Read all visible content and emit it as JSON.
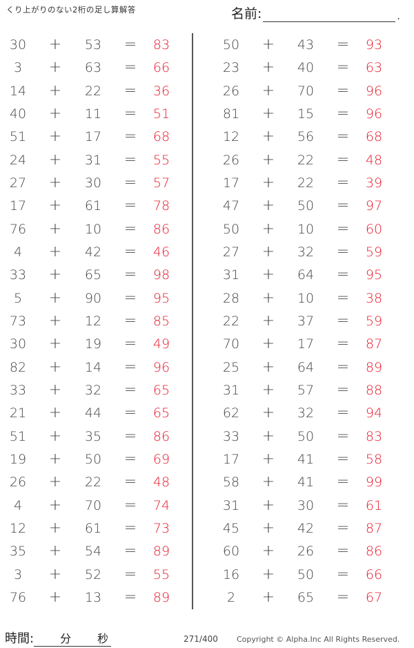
{
  "header": {
    "title": "くり上がりのない2桁の足し算解答",
    "name_label": "名前:",
    "name_end": "."
  },
  "footer": {
    "time_label": "時間:",
    "minutes": "分",
    "seconds": "秒",
    "page": "271/400",
    "copyright": "Copyright ©  Alpha.Inc All Rights Reserved."
  },
  "symbols": {
    "plus": "+",
    "equals": "="
  },
  "colors": {
    "answer": "#e8192c",
    "text": "#444444"
  },
  "left": [
    [
      "30",
      "53",
      "83"
    ],
    [
      "3",
      "63",
      "66"
    ],
    [
      "14",
      "22",
      "36"
    ],
    [
      "40",
      "11",
      "51"
    ],
    [
      "51",
      "17",
      "68"
    ],
    [
      "24",
      "31",
      "55"
    ],
    [
      "27",
      "30",
      "57"
    ],
    [
      "17",
      "61",
      "78"
    ],
    [
      "76",
      "10",
      "86"
    ],
    [
      "4",
      "42",
      "46"
    ],
    [
      "33",
      "65",
      "98"
    ],
    [
      "5",
      "90",
      "95"
    ],
    [
      "73",
      "12",
      "85"
    ],
    [
      "30",
      "19",
      "49"
    ],
    [
      "82",
      "14",
      "96"
    ],
    [
      "33",
      "32",
      "65"
    ],
    [
      "21",
      "44",
      "65"
    ],
    [
      "51",
      "35",
      "86"
    ],
    [
      "19",
      "50",
      "69"
    ],
    [
      "26",
      "22",
      "48"
    ],
    [
      "4",
      "70",
      "74"
    ],
    [
      "12",
      "61",
      "73"
    ],
    [
      "35",
      "54",
      "89"
    ],
    [
      "3",
      "52",
      "55"
    ],
    [
      "76",
      "13",
      "89"
    ]
  ],
  "right": [
    [
      "50",
      "43",
      "93"
    ],
    [
      "23",
      "40",
      "63"
    ],
    [
      "26",
      "70",
      "96"
    ],
    [
      "81",
      "15",
      "96"
    ],
    [
      "12",
      "56",
      "68"
    ],
    [
      "26",
      "22",
      "48"
    ],
    [
      "17",
      "22",
      "39"
    ],
    [
      "47",
      "50",
      "97"
    ],
    [
      "50",
      "10",
      "60"
    ],
    [
      "27",
      "32",
      "59"
    ],
    [
      "31",
      "64",
      "95"
    ],
    [
      "28",
      "10",
      "38"
    ],
    [
      "22",
      "37",
      "59"
    ],
    [
      "70",
      "17",
      "87"
    ],
    [
      "25",
      "64",
      "89"
    ],
    [
      "31",
      "57",
      "88"
    ],
    [
      "62",
      "32",
      "94"
    ],
    [
      "33",
      "50",
      "83"
    ],
    [
      "17",
      "41",
      "58"
    ],
    [
      "58",
      "41",
      "99"
    ],
    [
      "31",
      "30",
      "61"
    ],
    [
      "45",
      "42",
      "87"
    ],
    [
      "60",
      "26",
      "86"
    ],
    [
      "16",
      "50",
      "66"
    ],
    [
      "2",
      "65",
      "67"
    ]
  ]
}
